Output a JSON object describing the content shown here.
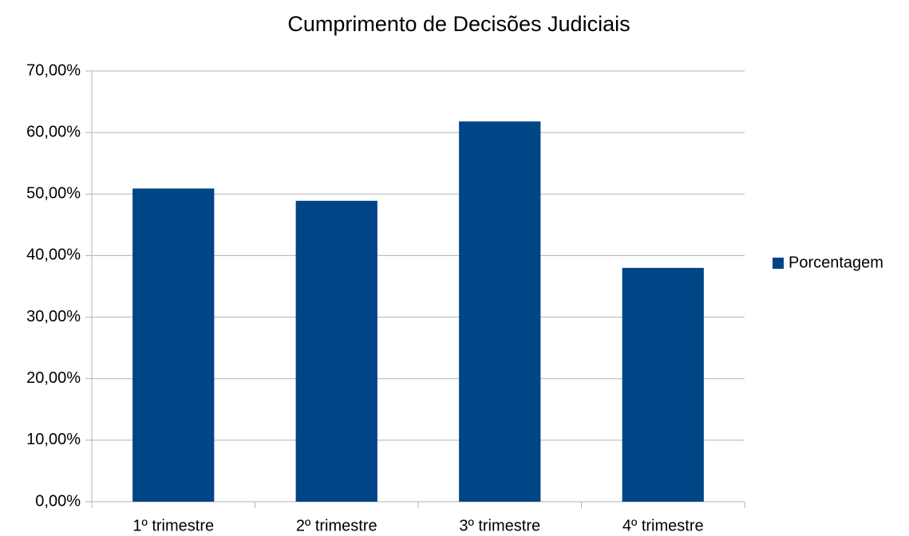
{
  "chart_data": {
    "type": "bar",
    "title": "Cumprimento de Decisões Judiciais",
    "categories": [
      "1º trimestre",
      "2º trimestre",
      "3º trimestre",
      "4º trimestre"
    ],
    "series": [
      {
        "name": "Porcentagem",
        "color": "#004586",
        "values": [
          50.9,
          48.9,
          61.8,
          38.0
        ]
      }
    ],
    "ylim": [
      0,
      70
    ],
    "yticks": [
      {
        "value": 0,
        "label": "0,00%"
      },
      {
        "value": 10,
        "label": "10,00%"
      },
      {
        "value": 20,
        "label": "20,00%"
      },
      {
        "value": 30,
        "label": "30,00%"
      },
      {
        "value": 40,
        "label": "40,00%"
      },
      {
        "value": 50,
        "label": "50,00%"
      },
      {
        "value": 60,
        "label": "60,00%"
      },
      {
        "value": 70,
        "label": "70,00%"
      }
    ],
    "grid": true,
    "legend": "right"
  }
}
